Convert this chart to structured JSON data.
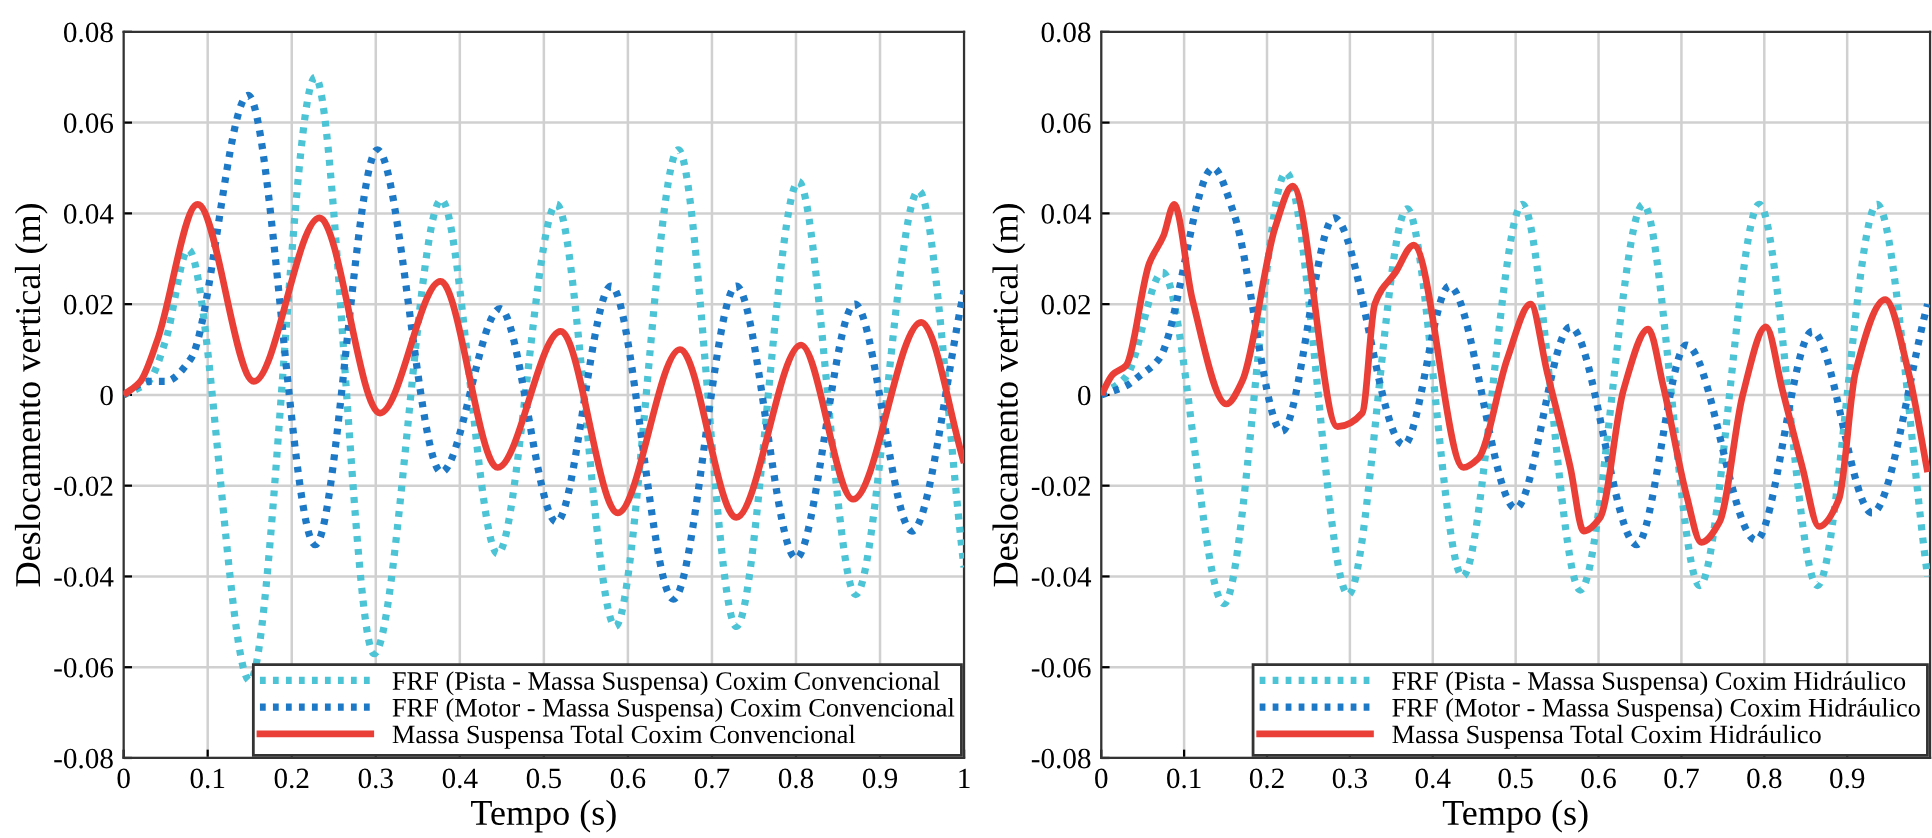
{
  "chart_data": [
    {
      "type": "line",
      "xlabel": "Tempo (s)",
      "ylabel": "Deslocamento vertical (m)",
      "xlim": [
        0,
        1
      ],
      "ylim": [
        -0.08,
        0.08
      ],
      "xticks": [
        0,
        0.1,
        0.2,
        0.3,
        0.4,
        0.5,
        0.6,
        0.7,
        0.8,
        0.9,
        1
      ],
      "yticks": [
        -0.08,
        -0.06,
        -0.04,
        -0.02,
        0,
        0.02,
        0.04,
        0.06,
        0.08
      ],
      "grid": true,
      "legend": "bottom right",
      "series": [
        {
          "name": "FRF (Pista - Massa Suspensa) Coxim Convencional",
          "color": "#4dc3d6",
          "line_style": "dotted",
          "x": [
            0,
            0.03,
            0.05,
            0.077,
            0.15,
            0.228,
            0.298,
            0.378,
            0.445,
            0.515,
            0.585,
            0.66,
            0.729,
            0.803,
            0.871,
            0.946,
            1
          ],
          "values": [
            0,
            0.003,
            0.012,
            0.032,
            -0.063,
            0.07,
            -0.057,
            0.043,
            -0.035,
            0.042,
            -0.051,
            0.054,
            -0.051,
            0.047,
            -0.044,
            0.045,
            -0.038
          ]
        },
        {
          "name": "FRF (Motor - Massa Suspensa) Coxim Convencional",
          "color": "#1d78c6",
          "line_style": "dotted",
          "x": [
            0,
            0.03,
            0.05,
            0.08,
            0.148,
            0.228,
            0.302,
            0.378,
            0.448,
            0.515,
            0.58,
            0.654,
            0.729,
            0.8,
            0.87,
            0.938,
            1
          ],
          "values": [
            0,
            0.003,
            0.003,
            0.008,
            0.066,
            -0.033,
            0.054,
            -0.017,
            0.019,
            -0.028,
            0.024,
            -0.045,
            0.024,
            -0.036,
            0.02,
            -0.03,
            0.023
          ]
        },
        {
          "name": "Massa Suspensa Total Coxim Convencional",
          "color": "#ea3f36",
          "line_style": "solid",
          "x": [
            0,
            0.02,
            0.04,
            0.088,
            0.155,
            0.233,
            0.305,
            0.377,
            0.445,
            0.52,
            0.588,
            0.662,
            0.729,
            0.806,
            0.868,
            0.949,
            1
          ],
          "values": [
            0,
            0.003,
            0.012,
            0.042,
            0.003,
            0.039,
            -0.004,
            0.025,
            -0.016,
            0.014,
            -0.026,
            0.01,
            -0.027,
            0.011,
            -0.023,
            0.016,
            -0.015
          ]
        }
      ]
    },
    {
      "type": "line",
      "xlabel": "Tempo (s)",
      "ylabel": "Deslocamento vertical (m)",
      "xlim": [
        0,
        1
      ],
      "ylim": [
        -0.08,
        0.08
      ],
      "xticks": [
        0,
        0.1,
        0.2,
        0.3,
        0.4,
        0.5,
        0.6,
        0.7,
        0.8,
        0.9
      ],
      "yticks": [
        -0.08,
        -0.06,
        -0.04,
        -0.02,
        0,
        0.02,
        0.04,
        0.06,
        0.08
      ],
      "grid": true,
      "legend": "bottom right",
      "series": [
        {
          "name": "FRF (Pista - Massa Suspensa) Coxim Hidráulico",
          "color": "#4dc3d6",
          "line_style": "dotted",
          "x": [
            0,
            0.03,
            0.074,
            0.148,
            0.223,
            0.298,
            0.369,
            0.436,
            0.508,
            0.578,
            0.654,
            0.722,
            0.794,
            0.864,
            0.936,
            0.997
          ],
          "values": [
            0,
            0.004,
            0.027,
            -0.046,
            0.049,
            -0.044,
            0.041,
            -0.04,
            0.042,
            -0.043,
            0.042,
            -0.042,
            0.042,
            -0.042,
            0.042,
            -0.04
          ]
        },
        {
          "name": "FRF (Motor - Massa Suspensa) Coxim Hidráulico",
          "color": "#1d78c6",
          "line_style": "dotted",
          "x": [
            0,
            0.03,
            0.045,
            0.07,
            0.135,
            0.16,
            0.218,
            0.281,
            0.365,
            0.42,
            0.5,
            0.566,
            0.646,
            0.706,
            0.79,
            0.858,
            0.93,
            0.997
          ],
          "values": [
            0,
            0.002,
            0.004,
            0.008,
            0.05,
            0.04,
            -0.008,
            0.039,
            -0.011,
            0.024,
            -0.025,
            0.015,
            -0.033,
            0.011,
            -0.032,
            0.014,
            -0.026,
            0.02
          ]
        },
        {
          "name": "Massa Suspensa Total Coxim Hidráulico",
          "color": "#ea3f36",
          "line_style": "solid",
          "x": [
            0,
            0.014,
            0.03,
            0.058,
            0.075,
            0.088,
            0.11,
            0.151,
            0.17,
            0.21,
            0.231,
            0.285,
            0.315,
            0.33,
            0.355,
            0.377,
            0.437,
            0.455,
            0.49,
            0.518,
            0.538,
            0.566,
            0.582,
            0.602,
            0.63,
            0.66,
            0.678,
            0.706,
            0.724,
            0.746,
            0.774,
            0.802,
            0.822,
            0.846,
            0.866,
            0.89,
            0.91,
            0.946,
            0.974,
            0.997
          ],
          "values": [
            0,
            0.0045,
            0.0065,
            0.029,
            0.035,
            0.042,
            0.021,
            -0.002,
            0.003,
            0.037,
            0.046,
            -0.007,
            -0.004,
            0.02,
            0.027,
            0.033,
            -0.016,
            -0.014,
            0.008,
            0.02,
            0.005,
            -0.016,
            -0.03,
            -0.027,
            0.001,
            0.0145,
            0.002,
            -0.022,
            -0.0325,
            -0.028,
            0,
            0.015,
            0.001,
            -0.016,
            -0.029,
            -0.023,
            0.005,
            0.021,
            0.005,
            -0.017
          ]
        }
      ]
    }
  ]
}
